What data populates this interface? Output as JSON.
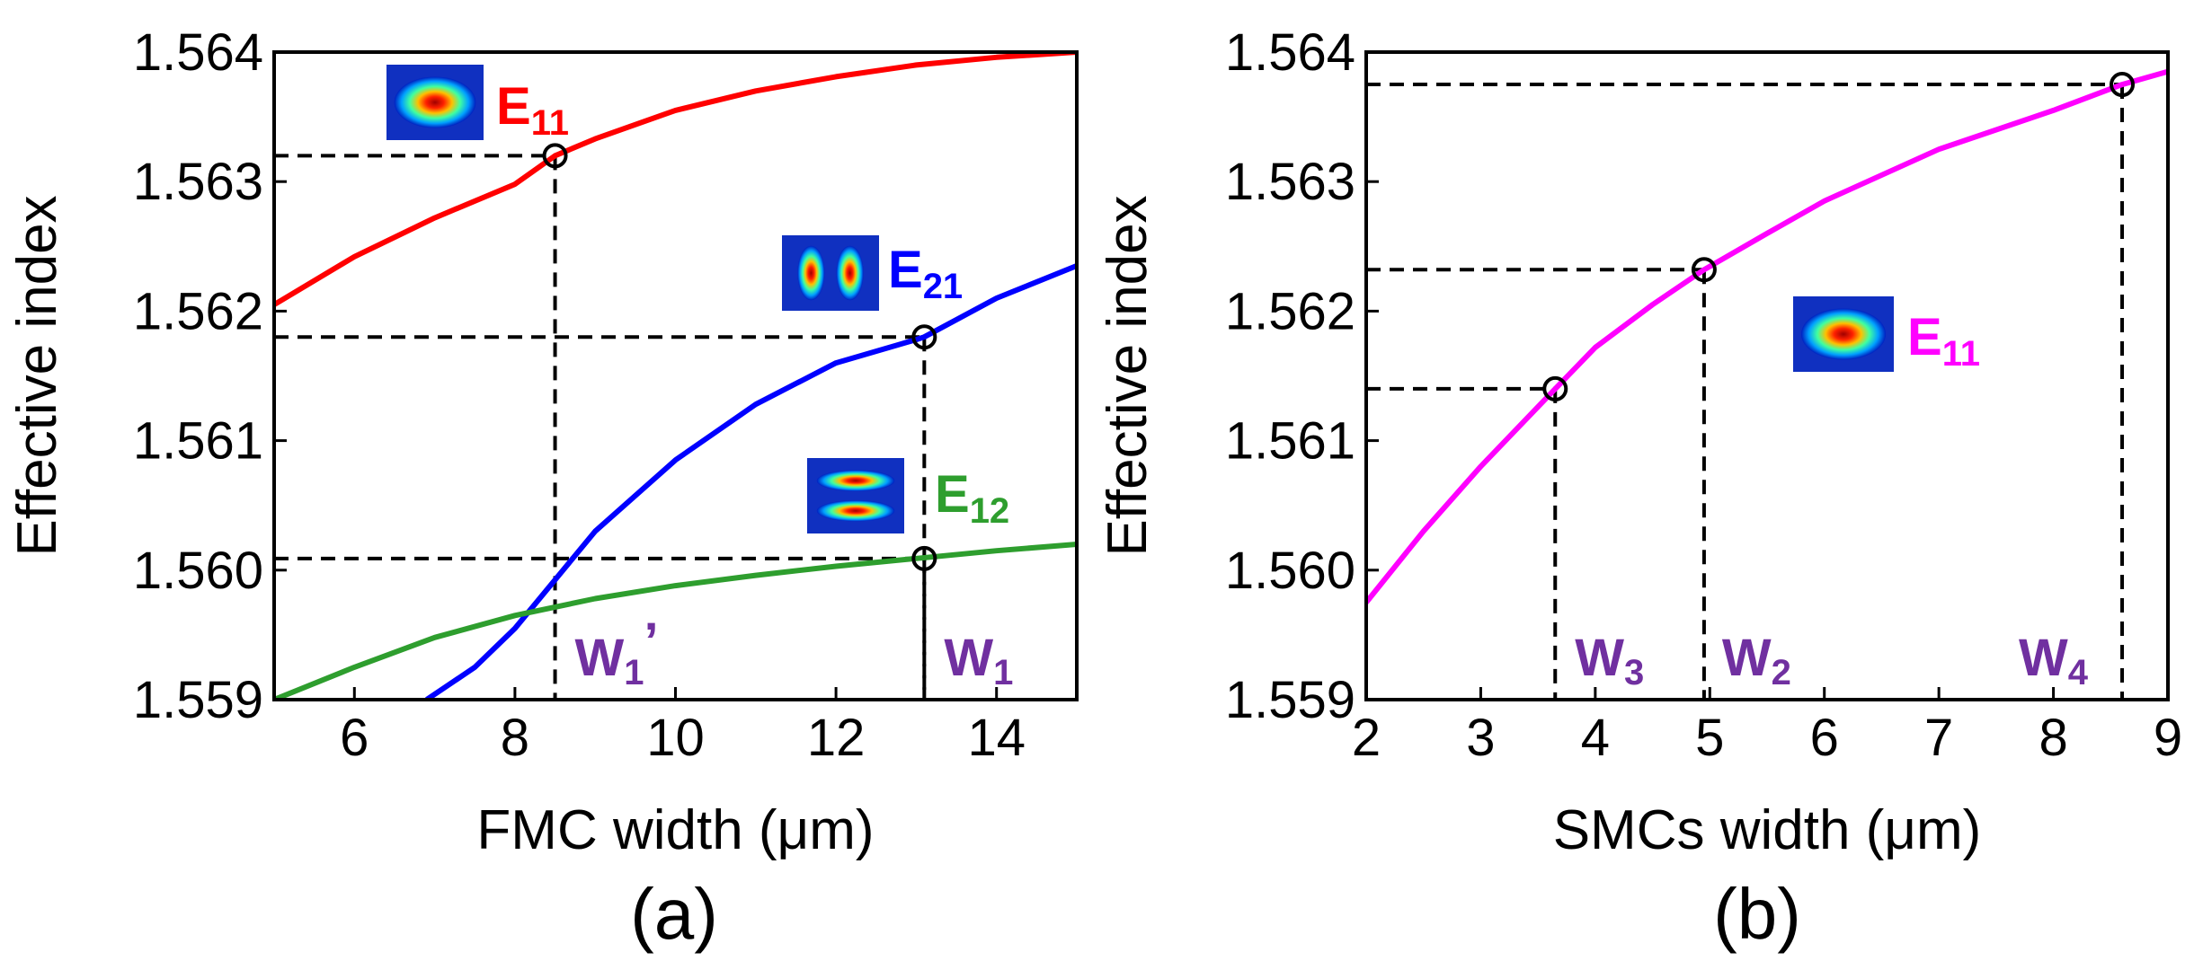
{
  "chart_data": [
    {
      "type": "line",
      "panel_label": "(a)",
      "xlabel": "FMC width (μm)",
      "ylabel": "Effective index",
      "xlim": [
        5,
        15
      ],
      "ylim": [
        1.559,
        1.564
      ],
      "xticks": [
        6,
        8,
        10,
        12,
        14
      ],
      "yticks": [
        1.559,
        1.56,
        1.561,
        1.562,
        1.563,
        1.564
      ],
      "xtick_labels": [
        "6",
        "8",
        "10",
        "12",
        "14"
      ],
      "ytick_labels": [
        "1.559",
        "1.560",
        "1.561",
        "1.562",
        "1.563",
        "1.564"
      ],
      "series": [
        {
          "name": "E11",
          "color": "#ff0000",
          "x": [
            5,
            6,
            7,
            8,
            8.5,
            9,
            10,
            11,
            12,
            13,
            14,
            15
          ],
          "y": [
            1.56205,
            1.56242,
            1.56272,
            1.56298,
            1.5632,
            1.56333,
            1.56355,
            1.5637,
            1.56381,
            1.5639,
            1.56396,
            1.564
          ]
        },
        {
          "name": "E21",
          "color": "#0000ff",
          "x": [
            6.9,
            7.5,
            8,
            9,
            10,
            11,
            12,
            13,
            13.1,
            14,
            15
          ],
          "y": [
            1.559,
            1.55925,
            1.55955,
            1.5603,
            1.56085,
            1.56128,
            1.5616,
            1.56178,
            1.5618,
            1.5621,
            1.56235
          ]
        },
        {
          "name": "E12",
          "color": "#2e9e2e",
          "x": [
            5,
            6,
            7,
            8,
            9,
            10,
            11,
            12,
            13,
            14,
            15
          ],
          "y": [
            1.559,
            1.55925,
            1.55948,
            1.55965,
            1.55978,
            1.55988,
            1.55996,
            1.56003,
            1.56009,
            1.56015,
            1.5602
          ]
        }
      ],
      "markers": [
        {
          "x": 8.5,
          "y": 1.5632,
          "label": "W",
          "label_sub": "1",
          "label_sup": "’"
        },
        {
          "x": 13.1,
          "y": 1.5618,
          "label": "W",
          "label_sub": "1",
          "label_sup": ""
        },
        {
          "x": 13.1,
          "y": 1.56009,
          "label": "",
          "label_sub": "",
          "label_sup": ""
        }
      ],
      "mode_labels": [
        {
          "text": "E",
          "sub": "11",
          "color": "#ff0000",
          "pattern": "single-lobe"
        },
        {
          "text": "E",
          "sub": "21",
          "color": "#0000ff",
          "pattern": "two-lobe-horizontal"
        },
        {
          "text": "E",
          "sub": "12",
          "color": "#2e9e2e",
          "pattern": "two-lobe-vertical"
        }
      ]
    },
    {
      "type": "line",
      "panel_label": "(b)",
      "xlabel": "SMCs width (μm)",
      "ylabel": "Effective index",
      "xlim": [
        2,
        9
      ],
      "ylim": [
        1.559,
        1.564
      ],
      "xticks": [
        2,
        3,
        4,
        5,
        6,
        7,
        8,
        9
      ],
      "yticks": [
        1.559,
        1.56,
        1.561,
        1.562,
        1.563,
        1.564
      ],
      "xtick_labels": [
        "2",
        "3",
        "4",
        "5",
        "6",
        "7",
        "8",
        "9"
      ],
      "ytick_labels": [
        "1.559",
        "1.560",
        "1.561",
        "1.562",
        "1.563",
        "1.564"
      ],
      "series": [
        {
          "name": "E11",
          "color": "#ff00ff",
          "x": [
            2,
            2.5,
            3,
            3.65,
            4,
            4.5,
            4.95,
            5.5,
            6,
            7,
            8,
            8.6,
            9
          ],
          "y": [
            1.55975,
            1.5603,
            1.5608,
            1.5614,
            1.56172,
            1.56205,
            1.56232,
            1.5626,
            1.56285,
            1.56325,
            1.56355,
            1.56375,
            1.56385
          ]
        }
      ],
      "markers": [
        {
          "x": 3.65,
          "y": 1.5614,
          "label": "W",
          "label_sub": "3",
          "label_sup": ""
        },
        {
          "x": 4.95,
          "y": 1.56232,
          "label": "W",
          "label_sub": "2",
          "label_sup": ""
        },
        {
          "x": 8.6,
          "y": 1.56375,
          "label": "W",
          "label_sub": "4",
          "label_sup": ""
        }
      ],
      "mode_labels": [
        {
          "text": "E",
          "sub": "11",
          "color": "#ff00ff",
          "pattern": "single-lobe"
        }
      ]
    }
  ]
}
